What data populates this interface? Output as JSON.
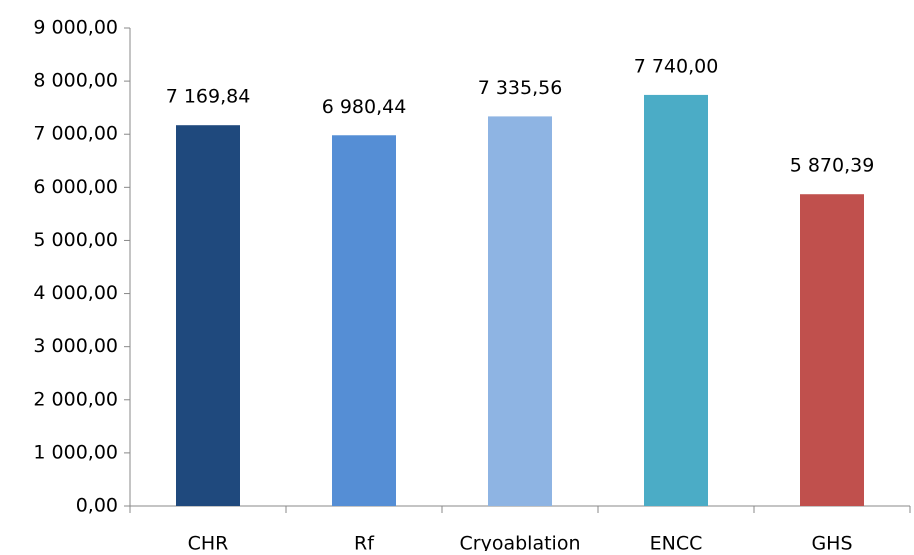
{
  "chart_data": {
    "type": "bar",
    "categories": [
      "CHR",
      "Rf",
      "Cryoablation",
      "ENCC",
      "GHS"
    ],
    "values": [
      7169.84,
      6980.44,
      7335.56,
      7740.0,
      5870.39
    ],
    "value_labels": [
      "7 169,84",
      "6 980,44",
      "7 335,56",
      "7 740,00",
      "5 870,39"
    ],
    "colors": [
      "#1f497d",
      "#558ed5",
      "#8eb4e3",
      "#4bacc6",
      "#c0504d"
    ],
    "ylim": [
      0,
      9000
    ],
    "yticks": [
      {
        "value": 0,
        "label": "0,00"
      },
      {
        "value": 1000,
        "label": "1 000,00"
      },
      {
        "value": 2000,
        "label": "2 000,00"
      },
      {
        "value": 3000,
        "label": "3 000,00"
      },
      {
        "value": 4000,
        "label": "4 000,00"
      },
      {
        "value": 5000,
        "label": "5 000,00"
      },
      {
        "value": 6000,
        "label": "6 000,00"
      },
      {
        "value": 7000,
        "label": "7 000,00"
      },
      {
        "value": 8000,
        "label": "8 000,00"
      },
      {
        "value": 9000,
        "label": "9 000,00"
      }
    ],
    "grid": false
  }
}
